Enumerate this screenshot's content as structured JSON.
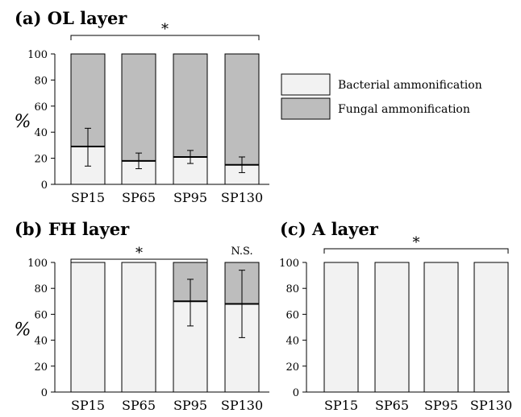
{
  "colors": {
    "bacterial": "#f2f2f2",
    "fungal": "#bdbdbd",
    "edge": "#000000"
  },
  "legend": {
    "bacterial": "Bacterial ammonification",
    "fungal": "Fungal ammonification"
  },
  "chart_data": [
    {
      "panel": "a",
      "type": "bar",
      "stacked": true,
      "title": "(a) OL layer",
      "ylabel": "%",
      "ylim": [
        0,
        100
      ],
      "yticks": [
        "0",
        "20",
        "40",
        "60",
        "80",
        "100"
      ],
      "categories": [
        "SP15",
        "SP65",
        "SP95",
        "SP130"
      ],
      "series": [
        {
          "name": "Bacterial ammonification",
          "values": [
            29,
            18,
            21,
            15
          ],
          "err_low": [
            14,
            12,
            16,
            9
          ],
          "err_high": [
            43,
            24,
            26,
            21
          ]
        },
        {
          "name": "Fungal ammonification",
          "values": [
            71,
            82,
            79,
            85
          ]
        }
      ],
      "significance": [
        {
          "label": "*",
          "from": 0,
          "to": 3
        }
      ],
      "legend_position": "right"
    },
    {
      "panel": "b",
      "type": "bar",
      "stacked": true,
      "title": "(b) FH layer",
      "ylabel": "%",
      "ylim": [
        0,
        100
      ],
      "yticks": [
        "0",
        "20",
        "40",
        "60",
        "80",
        "100"
      ],
      "categories": [
        "SP15",
        "SP65",
        "SP95",
        "SP130"
      ],
      "series": [
        {
          "name": "Bacterial ammonification",
          "values": [
            100,
            100,
            70,
            68
          ],
          "err_low": [
            null,
            null,
            51,
            42
          ],
          "err_high": [
            null,
            null,
            87,
            94
          ]
        },
        {
          "name": "Fungal ammonification",
          "values": [
            0,
            0,
            30,
            32
          ]
        }
      ],
      "significance": [
        {
          "label": "*",
          "from": 0,
          "to": 2
        },
        {
          "label": "N.S.",
          "from": 3,
          "to": 3
        }
      ]
    },
    {
      "panel": "c",
      "type": "bar",
      "stacked": true,
      "title": "(c) A layer",
      "ylim": [
        0,
        100
      ],
      "yticks": [
        "0",
        "20",
        "40",
        "60",
        "80",
        "100"
      ],
      "categories": [
        "SP15",
        "SP65",
        "SP95",
        "SP130"
      ],
      "series": [
        {
          "name": "Bacterial ammonification",
          "values": [
            100,
            100,
            100,
            100
          ]
        },
        {
          "name": "Fungal ammonification",
          "values": [
            0,
            0,
            0,
            0
          ]
        }
      ],
      "significance": [
        {
          "label": "*",
          "from": 0,
          "to": 3
        }
      ]
    }
  ]
}
